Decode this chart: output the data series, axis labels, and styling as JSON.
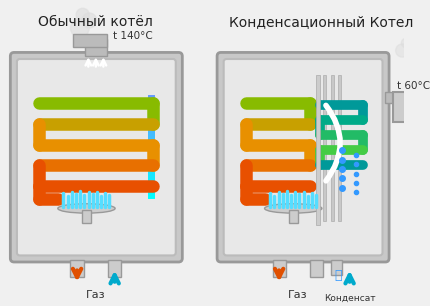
{
  "title_left": "Обычный котёл",
  "title_right": "Конденсационный Котел",
  "temp_left": "t 140°C",
  "temp_right": "t 60°C",
  "label_gas_left": "Газ",
  "label_gas_right": "Газ",
  "label_condensat": "Конденсат",
  "bg_color": "#f0f0f0",
  "boiler_fill": "#d8d8d8",
  "boiler_edge": "#aaaaaa",
  "pipe_colors_hot": [
    "#e05000",
    "#e07000",
    "#e09000",
    "#c8b400",
    "#a8c800"
  ],
  "pipe_color_cool": "#00aacc",
  "flame_color": "#00ccff",
  "arrow_down_color": "#e05000",
  "arrow_up_color": "#00aacc"
}
